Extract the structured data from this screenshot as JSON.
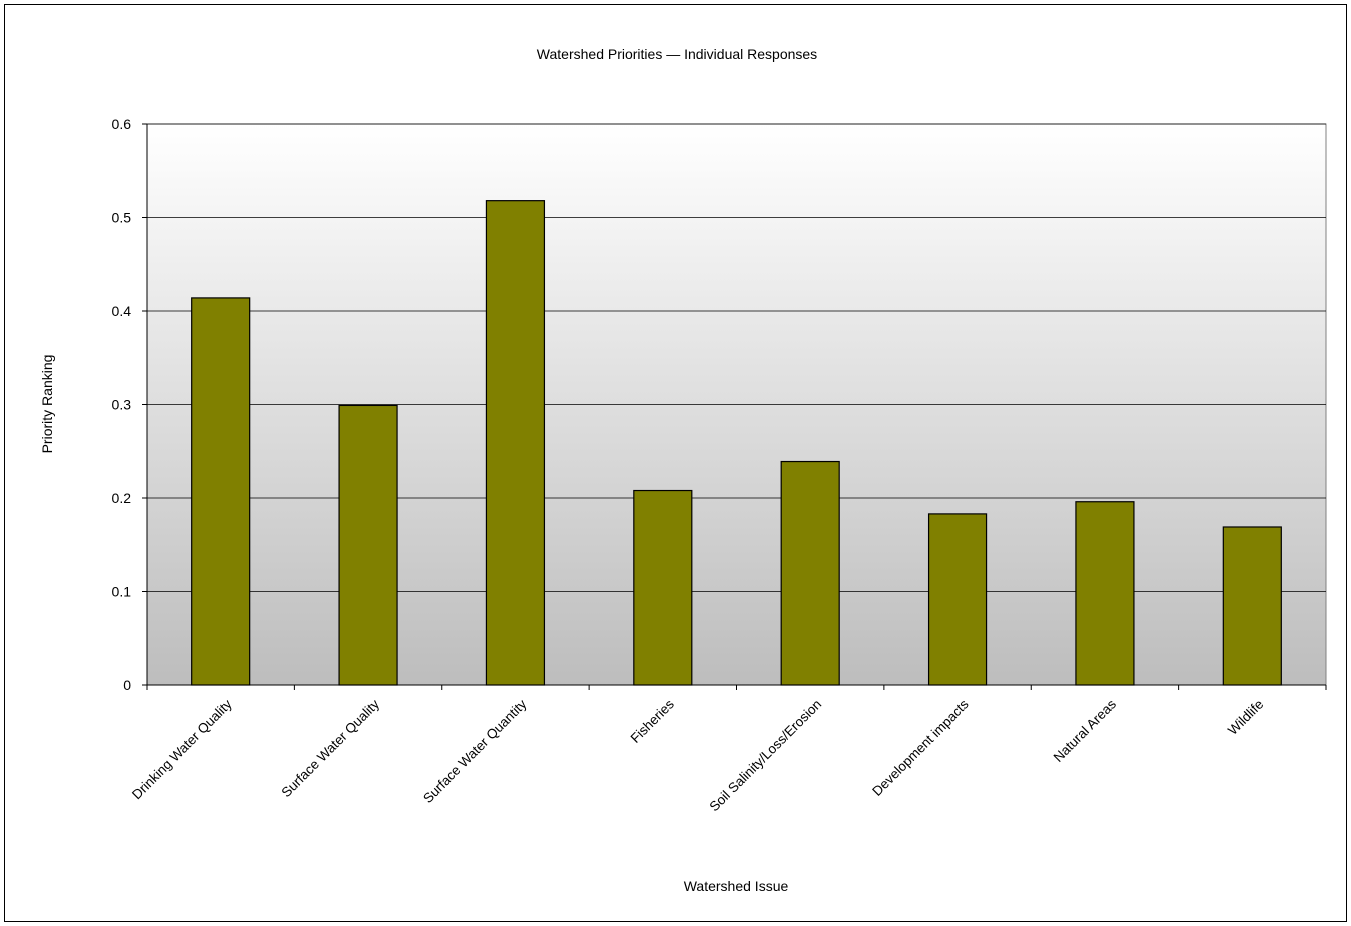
{
  "chart_data": {
    "type": "bar",
    "title": "Watershed Priorities  —  Individual Responses",
    "xlabel": "Watershed Issue",
    "ylabel": "Priority Ranking",
    "ylim": [
      0,
      0.6
    ],
    "yticks": [
      0,
      0.1,
      0.2,
      0.3,
      0.4,
      0.5,
      0.6
    ],
    "ytick_labels": [
      "0",
      "0.1",
      "0.2",
      "0.3",
      "0.4",
      "0.5",
      "0.6"
    ],
    "categories": [
      "Drinking Water Quality",
      "Surface Water Quality",
      "Surface Water Quantity",
      "Fisheries",
      "Soil Salinity/Loss/Erosion",
      "Development impacts",
      "Natural Areas",
      "Wildlife"
    ],
    "values": [
      0.414,
      0.299,
      0.518,
      0.208,
      0.239,
      0.183,
      0.196,
      0.169
    ],
    "bar_color": "#808000",
    "grid": true,
    "legend": "none"
  }
}
